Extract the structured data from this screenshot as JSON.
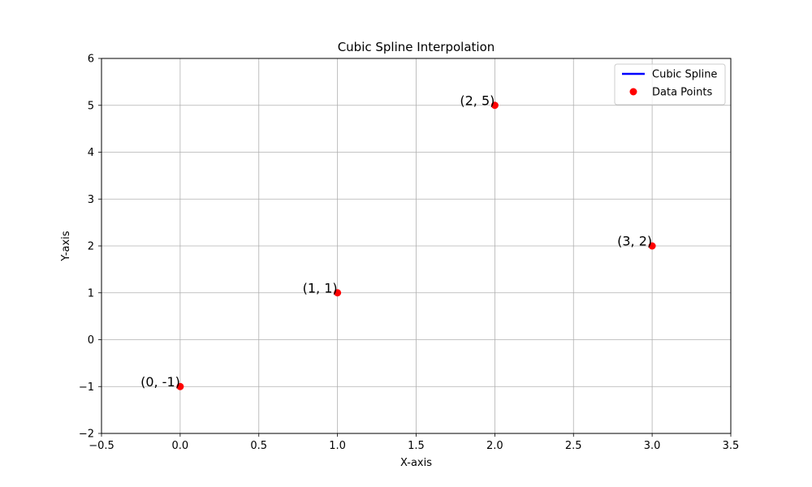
{
  "chart_data": {
    "type": "scatter",
    "title": "Cubic Spline Interpolation",
    "xlabel": "X-axis",
    "ylabel": "Y-axis",
    "xlim": [
      -0.5,
      3.5
    ],
    "ylim": [
      -2,
      6
    ],
    "xticks": [
      -0.5,
      0.0,
      0.5,
      1.0,
      1.5,
      2.0,
      2.5,
      3.0,
      3.5
    ],
    "xtick_labels": [
      "−0.5",
      "0.0",
      "0.5",
      "1.0",
      "1.5",
      "2.0",
      "2.5",
      "3.0",
      "3.5"
    ],
    "yticks": [
      -2,
      -1,
      0,
      1,
      2,
      3,
      4,
      5,
      6
    ],
    "ytick_labels": [
      "−2",
      "−1",
      "0",
      "1",
      "2",
      "3",
      "4",
      "5",
      "6"
    ],
    "grid": true,
    "legend_position": "top-right",
    "series": [
      {
        "name": "Cubic Spline",
        "type": "line",
        "color": "#0000ff",
        "x": [],
        "y": []
      },
      {
        "name": "Data Points",
        "type": "scatter",
        "color": "#ff0000",
        "x": [
          0,
          1,
          2,
          3
        ],
        "y": [
          -1,
          1,
          5,
          2
        ]
      }
    ],
    "annotations": [
      {
        "x": 0,
        "y": -1,
        "text": "(0, -1)"
      },
      {
        "x": 1,
        "y": 1,
        "text": "(1, 1)"
      },
      {
        "x": 2,
        "y": 5,
        "text": "(2, 5)"
      },
      {
        "x": 3,
        "y": 2,
        "text": "(3, 2)"
      }
    ]
  }
}
